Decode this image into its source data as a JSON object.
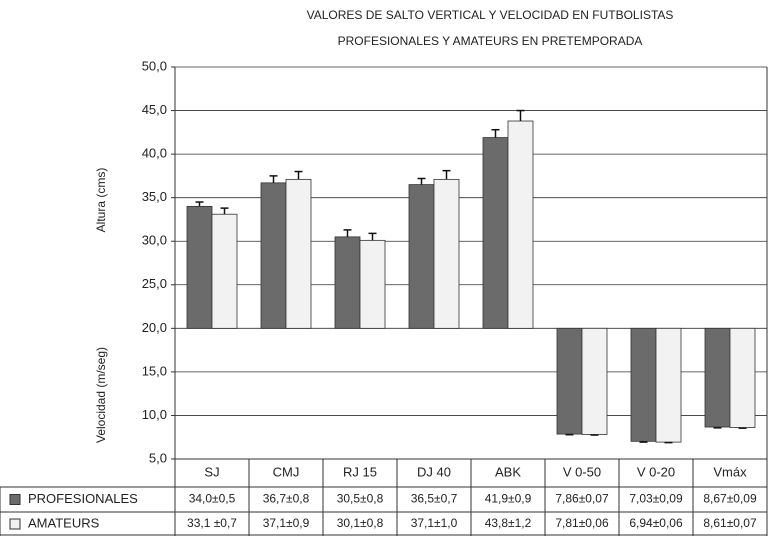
{
  "chart_data": {
    "type": "bar",
    "title": [
      "VALORES DE SALTO VERTICAL Y VELOCIDAD EN FUTBOLISTAS",
      "PROFESIONALES Y AMATEURS EN PRETEMPORADA"
    ],
    "y_label_upper": "Altura (cms)",
    "y_label_lower": "Velocidad (m/seg)",
    "categories": [
      "SJ",
      "CMJ",
      "RJ 15",
      "DJ 40",
      "ABK",
      "V 0-50",
      "V 0-20",
      "Vmáx"
    ],
    "baseline": 20,
    "series": [
      {
        "name": "PROFESIONALES",
        "color": "#6b6b6b",
        "values": [
          34.0,
          36.7,
          30.5,
          36.5,
          41.9,
          7.86,
          7.03,
          8.67
        ],
        "errors": [
          0.5,
          0.8,
          0.8,
          0.7,
          0.9,
          0.07,
          0.09,
          0.09
        ],
        "value_labels": [
          "34,0±0,5",
          "36,7±0,8",
          "30,5±0,8",
          "36,5±0,7",
          "41,9±0,9",
          "7,86±0,07",
          "7,03±0,09",
          "8,67±0,09"
        ]
      },
      {
        "name": "AMATEURS",
        "color": "#f2f2f2",
        "values": [
          33.1,
          37.1,
          30.1,
          37.1,
          43.8,
          7.81,
          6.94,
          8.61
        ],
        "errors": [
          0.7,
          0.9,
          0.8,
          1.0,
          1.2,
          0.06,
          0.06,
          0.07
        ],
        "value_labels": [
          "33,1 ±0,7",
          "37,1±0,9",
          "30,1±0,8",
          "37,1±1,0",
          "43,8±1,2",
          "7,81±0,06",
          "6,94±0,06",
          "8,61±0,07"
        ]
      }
    ],
    "ylim": [
      5,
      50
    ],
    "yticks": [
      {
        "value": 5,
        "label": "5,0"
      },
      {
        "value": 10,
        "label": "10,0"
      },
      {
        "value": 15,
        "label": "15,0"
      },
      {
        "value": 20,
        "label": "20,0"
      },
      {
        "value": 25,
        "label": "25,0"
      },
      {
        "value": 30,
        "label": "30,0"
      },
      {
        "value": 35,
        "label": "35,0"
      },
      {
        "value": 40,
        "label": "40,0"
      },
      {
        "value": 45,
        "label": "45,0"
      },
      {
        "value": 50,
        "label": "50,0"
      }
    ],
    "grid": true
  }
}
